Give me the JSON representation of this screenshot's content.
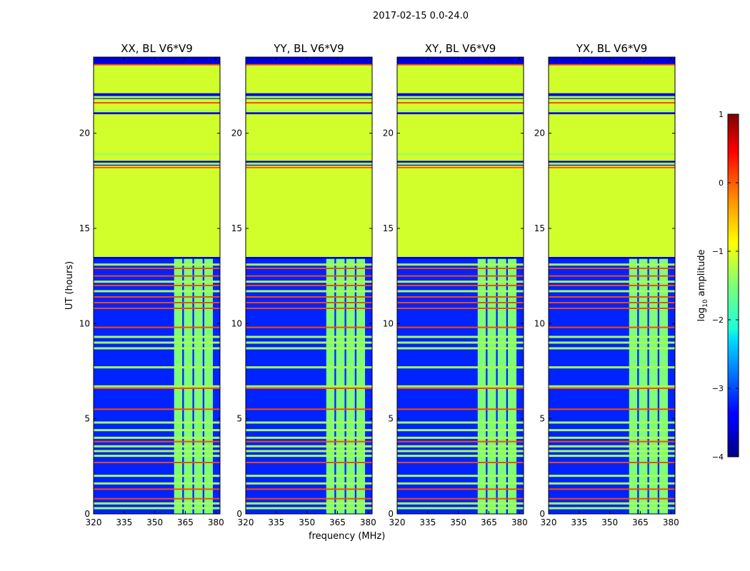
{
  "figure_title": "2017-02-15 0.0-24.0",
  "colorbar": {
    "label_prefix": "log",
    "label_sub": "10",
    "label_suffix": " amplitude",
    "ticks": [
      "1",
      "0",
      "−1",
      "−2",
      "−3",
      "−4"
    ],
    "range": [
      -4,
      1
    ]
  },
  "chart_data": [
    {
      "type": "heatmap",
      "title": "XX, BL V6*V9",
      "xlabel": "",
      "ylabel": "UT (hours)",
      "xticks": [
        "320",
        "335",
        "350",
        "365",
        "380"
      ],
      "yticks": [
        "0",
        "5",
        "10",
        "15",
        "20"
      ],
      "xlim": [
        320,
        382
      ],
      "ylim": [
        0,
        24
      ]
    },
    {
      "type": "heatmap",
      "title": "YY, BL V6*V9",
      "xlabel": "frequency (MHz)",
      "ylabel": "",
      "xticks": [
        "320",
        "335",
        "350",
        "365",
        "380"
      ],
      "yticks": [
        "0",
        "5",
        "10",
        "15",
        "20"
      ],
      "xlim": [
        320,
        382
      ],
      "ylim": [
        0,
        24
      ]
    },
    {
      "type": "heatmap",
      "title": "XY, BL V6*V9",
      "xlabel": "",
      "ylabel": "",
      "xticks": [
        "320",
        "335",
        "350",
        "365",
        "380"
      ],
      "yticks": [
        "0",
        "5",
        "10",
        "15",
        "20"
      ],
      "xlim": [
        320,
        382
      ],
      "ylim": [
        0,
        24
      ]
    },
    {
      "type": "heatmap",
      "title": "YX, BL V6*V9",
      "xlabel": "",
      "ylabel": "",
      "xticks": [
        "320",
        "335",
        "350",
        "365",
        "380"
      ],
      "yticks": [
        "0",
        "5",
        "10",
        "15",
        "20"
      ],
      "xlim": [
        320,
        382
      ],
      "ylim": [
        0,
        24
      ]
    }
  ],
  "layers": {
    "background_value": -3.2,
    "flagged_value": -1.1,
    "flagged_hours": [
      [
        13.5,
        23.6
      ],
      [
        18.85,
        21.0
      ]
    ],
    "rfi_band_mhz": [
      359.5,
      378.5
    ],
    "rfi_band_value": -1.5,
    "rfi_gaps_mhz": [
      [
        363.5,
        364.3
      ],
      [
        368.5,
        369.3
      ],
      [
        373.5,
        374.3
      ]
    ],
    "hot_lines_hours": [
      0.8,
      1.3,
      2.7,
      3.8,
      5.5,
      6.6,
      9.8,
      10.8,
      11.1,
      11.4,
      12.0,
      12.5,
      12.9,
      18.2,
      21.6,
      23.6
    ],
    "hot_value": 0.1,
    "warm_lines_hours": [
      0.3,
      0.55,
      1.6,
      2.0,
      3.05,
      3.3,
      3.55,
      4.0,
      4.4,
      4.8,
      6.7,
      7.7,
      8.7,
      9.0,
      9.3,
      11.7,
      12.2,
      13.1,
      18.4,
      18.9,
      21.2,
      21.9
    ],
    "warm_value": -1.3,
    "dark_bands_hours": [
      [
        13.4,
        13.5
      ],
      [
        18.3,
        18.55
      ],
      [
        21.0,
        21.1
      ],
      [
        21.8,
        22.1
      ],
      [
        23.6,
        24.0
      ]
    ],
    "dark_value": -3.6
  }
}
